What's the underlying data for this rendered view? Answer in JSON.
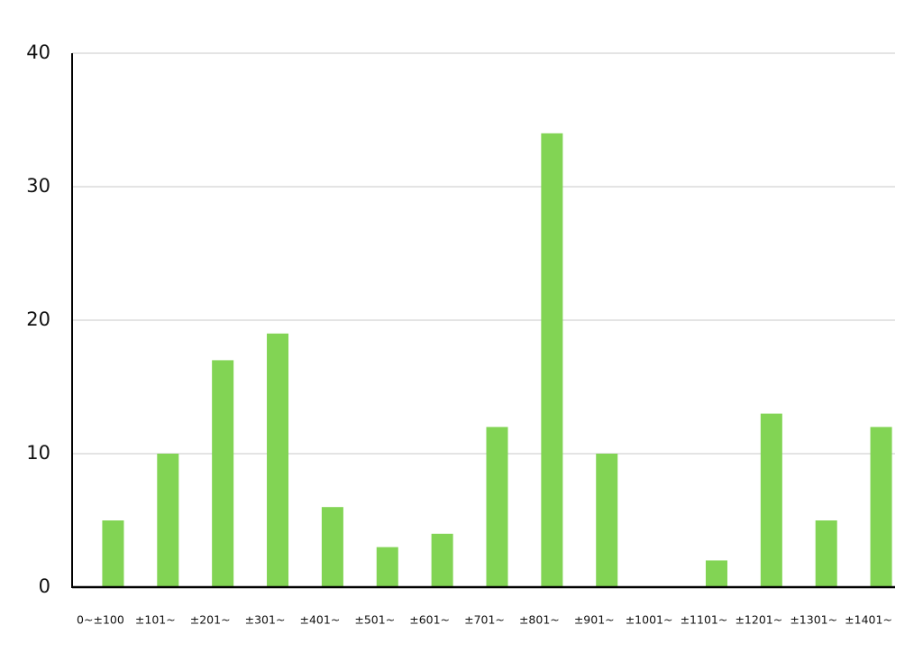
{
  "chart_data": {
    "type": "bar",
    "categories": [
      "0~±100",
      "±101~",
      "±201~",
      "±301~",
      "±401~",
      "±501~",
      "±601~",
      "±701~",
      "±801~",
      "±901~",
      "±1001~",
      "±1101~",
      "±1201~",
      "±1301~",
      "±1401~"
    ],
    "values": [
      5,
      10,
      17,
      19,
      6,
      3,
      4,
      12,
      34,
      10,
      0,
      2,
      13,
      5,
      12
    ],
    "color": "#82d454",
    "ylim": [
      0,
      40
    ],
    "yticks": [
      0,
      10,
      20,
      30,
      40
    ],
    "grid": true
  }
}
